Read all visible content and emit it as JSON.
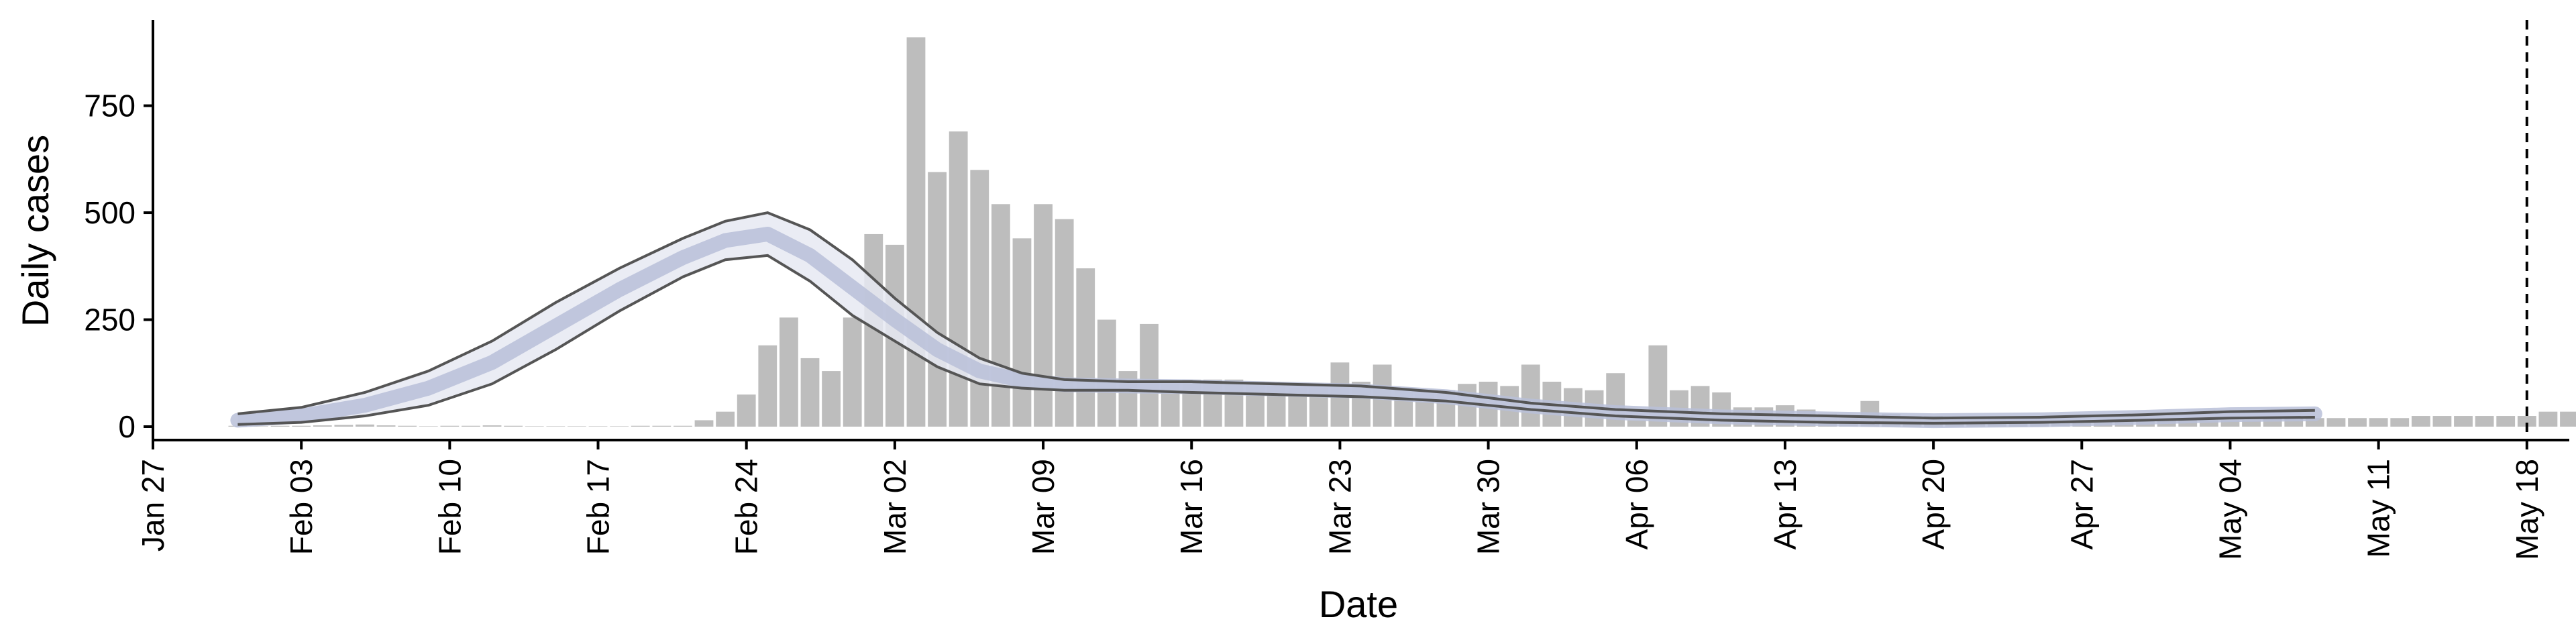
{
  "chart_data": {
    "type": "bar",
    "xlabel": "Date",
    "ylabel": "Daily cases",
    "xlim": [
      "2020-01-27",
      "2020-05-20"
    ],
    "ylim": [
      0,
      950
    ],
    "y_ticks": [
      0,
      250,
      500,
      750
    ],
    "x_ticks": [
      "2020-01-27",
      "2020-02-03",
      "2020-02-10",
      "2020-02-17",
      "2020-02-24",
      "2020-03-02",
      "2020-03-09",
      "2020-03-16",
      "2020-03-23",
      "2020-03-30",
      "2020-04-06",
      "2020-04-13",
      "2020-04-20",
      "2020-04-27",
      "2020-05-04",
      "2020-05-11",
      "2020-05-18"
    ],
    "x_tick_labels": [
      "Jan 27",
      "Feb 03",
      "Feb 10",
      "Feb 17",
      "Feb 24",
      "Mar 02",
      "Mar 09",
      "Mar 16",
      "Mar 23",
      "Mar 30",
      "Apr 06",
      "Apr 13",
      "Apr 20",
      "Apr 27",
      "May 04",
      "May 11",
      "May 18"
    ],
    "bars": {
      "start_date": "2020-01-31",
      "values": [
        2,
        1,
        2,
        2,
        3,
        4,
        5,
        3,
        2,
        1,
        2,
        2,
        3,
        2,
        1,
        1,
        1,
        1,
        1,
        2,
        2,
        2,
        15,
        35,
        75,
        190,
        255,
        160,
        130,
        255,
        450,
        425,
        910,
        595,
        690,
        600,
        520,
        440,
        520,
        485,
        370,
        250,
        130,
        240,
        100,
        110,
        110,
        110,
        105,
        95,
        90,
        90,
        150,
        105,
        145,
        85,
        75,
        85,
        100,
        105,
        95,
        145,
        105,
        90,
        85,
        125,
        15,
        190,
        85,
        95,
        80,
        45,
        45,
        50,
        40,
        30,
        25,
        60,
        30,
        25,
        25,
        20,
        20,
        20,
        15,
        15,
        15,
        15,
        15,
        15,
        15,
        15,
        15,
        15,
        15,
        15,
        20,
        20,
        20,
        20,
        20,
        20,
        20,
        25,
        25,
        25,
        25,
        25,
        25,
        35,
        35,
        30,
        30,
        30,
        30,
        25,
        20,
        15
      ],
      "color": "#bdbdbd"
    },
    "series": [
      {
        "role": "upper-bound-line",
        "x": [
          "2020-01-31",
          "2020-02-03",
          "2020-02-06",
          "2020-02-09",
          "2020-02-12",
          "2020-02-15",
          "2020-02-18",
          "2020-02-21",
          "2020-02-23",
          "2020-02-25",
          "2020-02-27",
          "2020-02-29",
          "2020-03-02",
          "2020-03-04",
          "2020-03-06",
          "2020-03-08",
          "2020-03-10",
          "2020-03-13",
          "2020-03-16",
          "2020-03-20",
          "2020-03-24",
          "2020-03-28",
          "2020-04-01",
          "2020-04-05",
          "2020-04-10",
          "2020-04-15",
          "2020-04-20",
          "2020-04-25",
          "2020-04-30",
          "2020-05-04",
          "2020-05-08"
        ],
        "y": [
          30,
          45,
          80,
          130,
          200,
          290,
          370,
          440,
          480,
          500,
          460,
          390,
          300,
          220,
          160,
          125,
          110,
          105,
          105,
          100,
          95,
          80,
          55,
          40,
          30,
          25,
          20,
          22,
          28,
          35,
          38
        ],
        "color": "#555555"
      },
      {
        "role": "lower-bound-line",
        "x": [
          "2020-01-31",
          "2020-02-03",
          "2020-02-06",
          "2020-02-09",
          "2020-02-12",
          "2020-02-15",
          "2020-02-18",
          "2020-02-21",
          "2020-02-23",
          "2020-02-25",
          "2020-02-27",
          "2020-02-29",
          "2020-03-02",
          "2020-03-04",
          "2020-03-06",
          "2020-03-08",
          "2020-03-10",
          "2020-03-13",
          "2020-03-16",
          "2020-03-20",
          "2020-03-24",
          "2020-03-28",
          "2020-04-01",
          "2020-04-05",
          "2020-04-10",
          "2020-04-15",
          "2020-04-20",
          "2020-04-25",
          "2020-04-30",
          "2020-05-04",
          "2020-05-08"
        ],
        "y": [
          5,
          10,
          25,
          50,
          100,
          180,
          270,
          350,
          390,
          400,
          340,
          260,
          200,
          140,
          100,
          90,
          85,
          85,
          80,
          75,
          70,
          60,
          40,
          25,
          15,
          10,
          8,
          10,
          15,
          20,
          22
        ],
        "color": "#555555"
      },
      {
        "role": "central-estimate",
        "x": [
          "2020-01-31",
          "2020-02-03",
          "2020-02-06",
          "2020-02-09",
          "2020-02-12",
          "2020-02-15",
          "2020-02-18",
          "2020-02-21",
          "2020-02-23",
          "2020-02-25",
          "2020-02-27",
          "2020-02-29",
          "2020-03-02",
          "2020-03-04",
          "2020-03-06",
          "2020-03-08",
          "2020-03-10",
          "2020-03-13",
          "2020-03-16",
          "2020-03-20",
          "2020-03-24",
          "2020-03-28",
          "2020-04-01",
          "2020-04-05",
          "2020-04-10",
          "2020-04-15",
          "2020-04-20",
          "2020-04-25",
          "2020-04-30",
          "2020-05-04",
          "2020-05-08"
        ],
        "y": [
          15,
          25,
          50,
          90,
          150,
          235,
          320,
          395,
          435,
          450,
          400,
          325,
          250,
          180,
          130,
          108,
          98,
          95,
          93,
          88,
          83,
          70,
          48,
          33,
          23,
          18,
          14,
          16,
          22,
          28,
          30
        ],
        "color": "#b8c0d8",
        "band_color": "#e6e9f2"
      }
    ],
    "vline": {
      "x": "2020-05-18",
      "style": "dashed",
      "color": "#000000"
    },
    "grid": false,
    "legend": "none"
  }
}
